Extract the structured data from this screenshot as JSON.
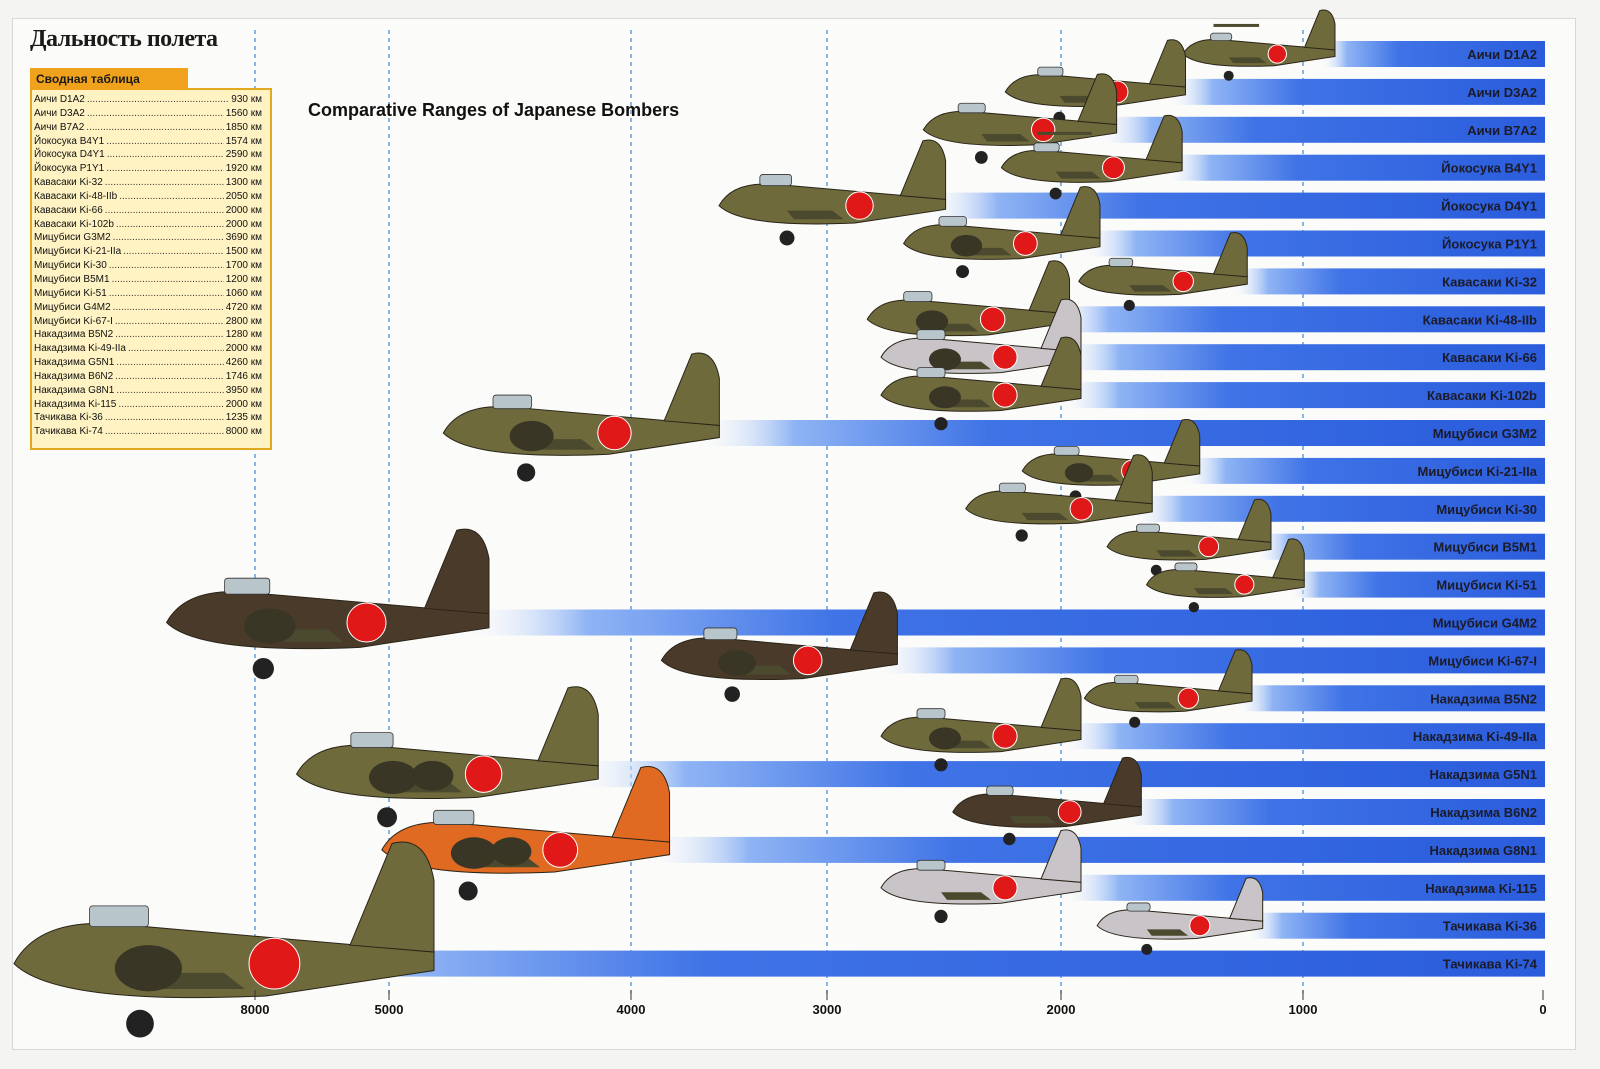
{
  "title": "Дальность полета",
  "subtitle": "Comparative Ranges of Japanese Bombers",
  "summary": {
    "header": "Сводная таблица",
    "dots": "..............................................................",
    "rows": [
      {
        "name": "Аичи D1A2",
        "value": "930 км"
      },
      {
        "name": "Аичи D3A2",
        "value": "1560 км"
      },
      {
        "name": "Аичи B7A2",
        "value": "1850 км"
      },
      {
        "name": "Йокосука B4Y1",
        "value": "1574 км"
      },
      {
        "name": "Йокосука D4Y1",
        "value": "2590 км"
      },
      {
        "name": "Йокосука P1Y1",
        "value": "1920 км"
      },
      {
        "name": "Кавасаки Ki-32",
        "value": "1300 км"
      },
      {
        "name": "Кавасаки Ki-48-IIb",
        "value": "2050 км"
      },
      {
        "name": "Кавасаки Ki-66",
        "value": "2000 км"
      },
      {
        "name": "Кавасаки Ki-102b",
        "value": "2000 км"
      },
      {
        "name": "Мицубиси G3M2",
        "value": "3690 км"
      },
      {
        "name": "Мицубиси Ki-21-IIa",
        "value": "1500 км"
      },
      {
        "name": "Мицубиси Ki-30",
        "value": "1700 км"
      },
      {
        "name": "Мицубиси B5M1",
        "value": "1200 км"
      },
      {
        "name": "Мицубиси Ki-51",
        "value": "1060 км"
      },
      {
        "name": "Мицубиси G4M2",
        "value": "4720 км"
      },
      {
        "name": "Мицубиси Ki-67-I",
        "value": "2800 км"
      },
      {
        "name": "Накадзима B5N2",
        "value": "1280 км"
      },
      {
        "name": "Накадзима Ki-49-IIa",
        "value": "2000 км"
      },
      {
        "name": "Накадзима G5N1",
        "value": "4260 км"
      },
      {
        "name": "Накадзима B6N2",
        "value": "1746 км"
      },
      {
        "name": "Накадзима G8N1",
        "value": "3950 км"
      },
      {
        "name": "Накадзима Ki-115",
        "value": "2000 км"
      },
      {
        "name": "Тачикава Ki-36",
        "value": "1235 км"
      },
      {
        "name": "Тачикава Ki-74",
        "value": "8000 км"
      }
    ]
  },
  "colors": {
    "bar": "#2f63e0",
    "bar_light": "#ffffff",
    "gridline": "#4a90d9",
    "plane_olive": "#6e6a3c",
    "plane_dark": "#4a3a2a",
    "plane_silver": "#c8c4c8",
    "plane_orange": "#e06a22",
    "hinomaru": "#e01818"
  },
  "chart_data": {
    "type": "bar",
    "orientation": "horizontal",
    "x_direction": "reversed",
    "x_ticks": [
      {
        "label": "8000",
        "value": 8000
      },
      {
        "label": "5000",
        "value": 5000
      },
      {
        "label": "4000",
        "value": 4000
      },
      {
        "label": "3000",
        "value": 3000
      },
      {
        "label": "2000",
        "value": 2000
      },
      {
        "label": "1000",
        "value": 1000
      },
      {
        "label": "0",
        "value": 0
      }
    ],
    "categories": [
      "Аичи D1A2",
      "Аичи D3A2",
      "Аичи B7A2",
      "Йокосука B4Y1",
      "Йокосука D4Y1",
      "Йокосука P1Y1",
      "Кавасаки Ki-32",
      "Кавасаки Ki-48-IIb",
      "Кавасаки Ki-66",
      "Кавасаки Ki-102b",
      "Мицубиси G3M2",
      "Мицубиси Ki-21-IIa",
      "Мицубиси Ki-30",
      "Мицубиси B5M1",
      "Мицубиси Ki-51",
      "Мицубиси G4M2",
      "Мицубиси Ki-67-I",
      "Накадзима B5N2",
      "Накадзима Ki-49-IIa",
      "Накадзима G5N1",
      "Накадзима B6N2",
      "Накадзима G8N1",
      "Накадзима Ki-115",
      "Тачикава Ki-36",
      "Тачикава Ki-74"
    ],
    "values": [
      930,
      1560,
      1850,
      1574,
      2590,
      1920,
      1300,
      2050,
      2000,
      2000,
      3690,
      1500,
      1700,
      1200,
      1060,
      4720,
      2800,
      1280,
      2000,
      4260,
      1746,
      3950,
      2000,
      1235,
      8000
    ],
    "planes": [
      {
        "color": "plane_olive",
        "shape": "biplane"
      },
      {
        "color": "plane_olive",
        "shape": "single"
      },
      {
        "color": "plane_olive",
        "shape": "single"
      },
      {
        "color": "plane_olive",
        "shape": "biplane"
      },
      {
        "color": "plane_olive",
        "shape": "single"
      },
      {
        "color": "plane_olive",
        "shape": "twin"
      },
      {
        "color": "plane_olive",
        "shape": "single"
      },
      {
        "color": "plane_olive",
        "shape": "twin"
      },
      {
        "color": "plane_silver",
        "shape": "twin"
      },
      {
        "color": "plane_olive",
        "shape": "twin"
      },
      {
        "color": "plane_olive",
        "shape": "twin"
      },
      {
        "color": "plane_olive",
        "shape": "twin"
      },
      {
        "color": "plane_olive",
        "shape": "single"
      },
      {
        "color": "plane_olive",
        "shape": "single"
      },
      {
        "color": "plane_olive",
        "shape": "single"
      },
      {
        "color": "plane_dark",
        "shape": "twin"
      },
      {
        "color": "plane_dark",
        "shape": "twin"
      },
      {
        "color": "plane_olive",
        "shape": "single"
      },
      {
        "color": "plane_olive",
        "shape": "twin"
      },
      {
        "color": "plane_olive",
        "shape": "four"
      },
      {
        "color": "plane_dark",
        "shape": "single"
      },
      {
        "color": "plane_orange",
        "shape": "four"
      },
      {
        "color": "plane_silver",
        "shape": "single"
      },
      {
        "color": "plane_silver",
        "shape": "single"
      },
      {
        "color": "plane_olive",
        "shape": "twin"
      }
    ],
    "xlabel": "",
    "ylabel": ""
  }
}
